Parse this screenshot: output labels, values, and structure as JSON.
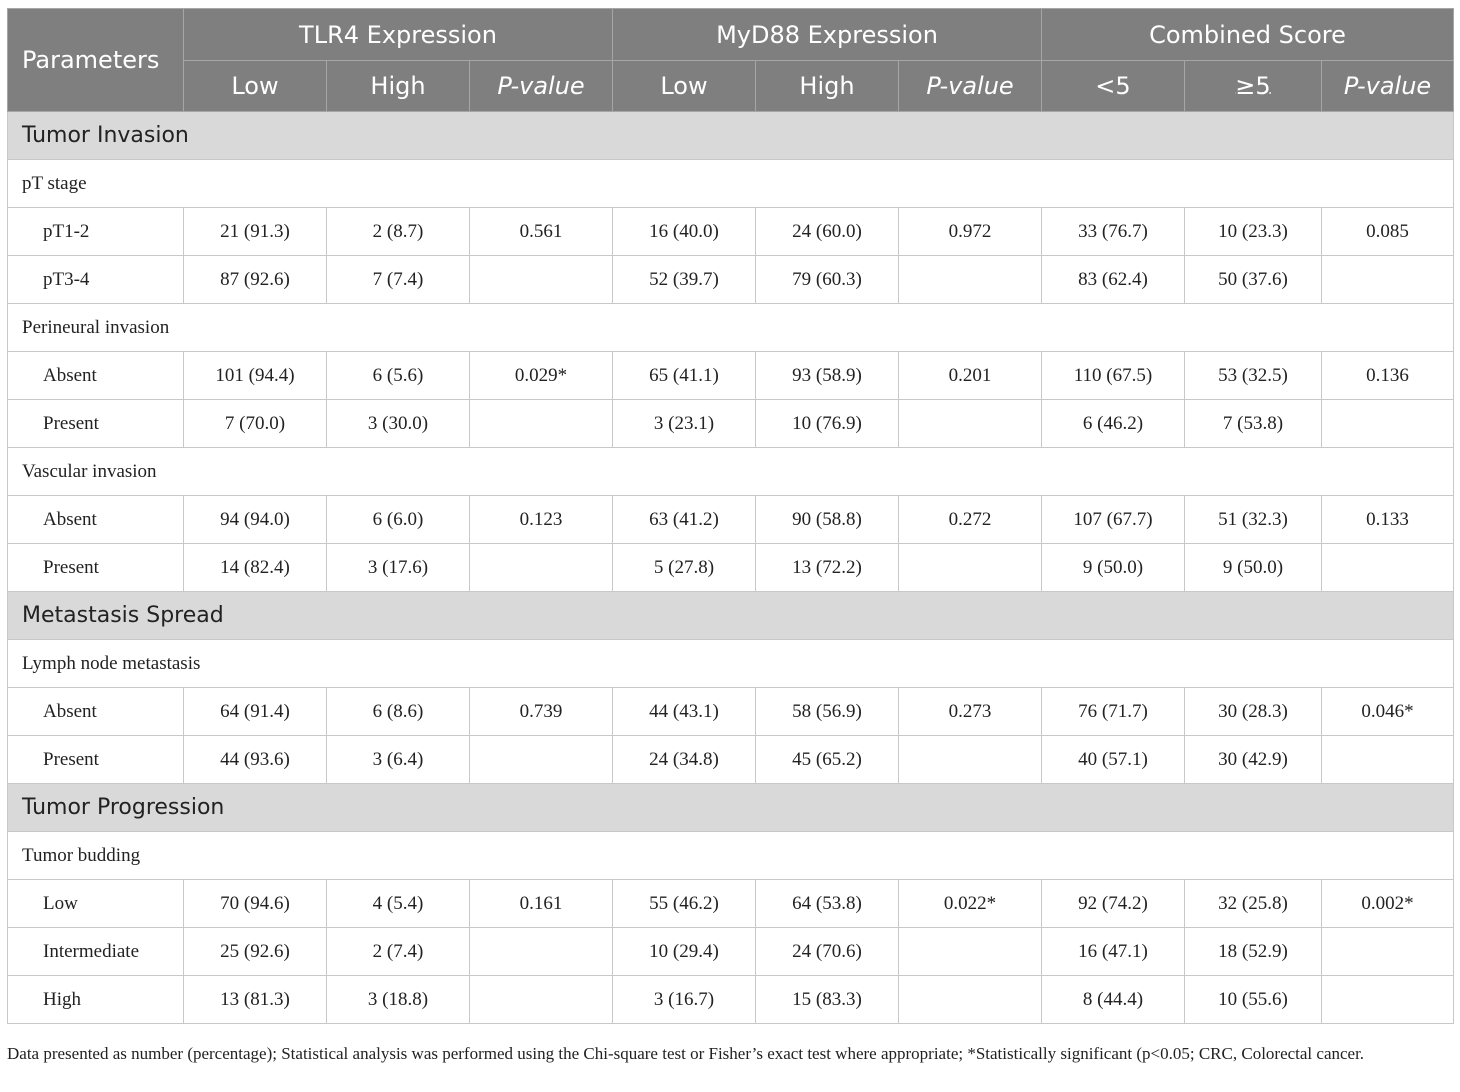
{
  "header": {
    "parameters": "Parameters",
    "groups": [
      "TLR4 Expression",
      "MyD88 Expression",
      "Combined Score"
    ],
    "sub": [
      "Low",
      "High",
      "P-value",
      "Low",
      "High",
      "P-value",
      "<5",
      "≥5",
      "P-value"
    ]
  },
  "sections": [
    {
      "title": "Tumor Invasion",
      "groups": [
        {
          "title": "pT stage",
          "rows": [
            {
              "label": "pT1-2",
              "cells": [
                "21 (91.3)",
                "2 (8.7)",
                "0.561",
                "16 (40.0)",
                "24 (60.0)",
                "0.972",
                "33 (76.7)",
                "10 (23.3)",
                "0.085"
              ]
            },
            {
              "label": "pT3-4",
              "cells": [
                "87 (92.6)",
                "7 (7.4)",
                "",
                "52 (39.7)",
                "79 (60.3)",
                "",
                "83 (62.4)",
                "50 (37.6)",
                ""
              ]
            }
          ]
        },
        {
          "title": "Perineural invasion",
          "rows": [
            {
              "label": "Absent",
              "cells": [
                "101 (94.4)",
                "6 (5.6)",
                "0.029*",
                "65 (41.1)",
                "93 (58.9)",
                "0.201",
                "110 (67.5)",
                "53 (32.5)",
                "0.136"
              ]
            },
            {
              "label": "Present",
              "cells": [
                "7 (70.0)",
                "3 (30.0)",
                "",
                "3 (23.1)",
                "10 (76.9)",
                "",
                "6 (46.2)",
                "7 (53.8)",
                ""
              ]
            }
          ]
        },
        {
          "title": "Vascular invasion",
          "rows": [
            {
              "label": "Absent",
              "cells": [
                "94 (94.0)",
                "6 (6.0)",
                "0.123",
                "63 (41.2)",
                "90 (58.8)",
                "0.272",
                "107 (67.7)",
                "51 (32.3)",
                "0.133"
              ]
            },
            {
              "label": "Present",
              "cells": [
                "14 (82.4)",
                "3 (17.6)",
                "",
                "5 (27.8)",
                "13 (72.2)",
                "",
                "9 (50.0)",
                "9 (50.0)",
                ""
              ]
            }
          ]
        }
      ]
    },
    {
      "title": "Metastasis Spread",
      "groups": [
        {
          "title": "Lymph node metastasis",
          "rows": [
            {
              "label": "Absent",
              "cells": [
                "64 (91.4)",
                "6 (8.6)",
                "0.739",
                "44 (43.1)",
                "58 (56.9)",
                "0.273",
                "76 (71.7)",
                "30 (28.3)",
                "0.046*"
              ]
            },
            {
              "label": "Present",
              "cells": [
                "44 (93.6)",
                "3 (6.4)",
                "",
                "24 (34.8)",
                "45 (65.2)",
                "",
                "40 (57.1)",
                "30 (42.9)",
                ""
              ]
            }
          ]
        }
      ]
    },
    {
      "title": "Tumor Progression",
      "groups": [
        {
          "title": "Tumor budding",
          "rows": [
            {
              "label": "Low",
              "cells": [
                "70 (94.6)",
                "4 (5.4)",
                "0.161",
                "55 (46.2)",
                "64 (53.8)",
                "0.022*",
                "92 (74.2)",
                "32 (25.8)",
                "0.002*"
              ]
            },
            {
              "label": "Intermediate",
              "cells": [
                "25 (92.6)",
                "2 (7.4)",
                "",
                "10 (29.4)",
                "24 (70.6)",
                "",
                "16 (47.1)",
                "18 (52.9)",
                ""
              ]
            },
            {
              "label": "High",
              "cells": [
                "13 (81.3)",
                "3 (18.8)",
                "",
                "3 (16.7)",
                "15 (83.3)",
                "",
                "8 (44.4)",
                "10 (55.6)",
                ""
              ]
            }
          ]
        }
      ]
    }
  ],
  "footnote": "Data presented as number (percentage); Statistical analysis was performed using the Chi-square test or Fisher’s exact test where appropriate; *Statistically significant (p<0.05; CRC, Colorectal cancer."
}
